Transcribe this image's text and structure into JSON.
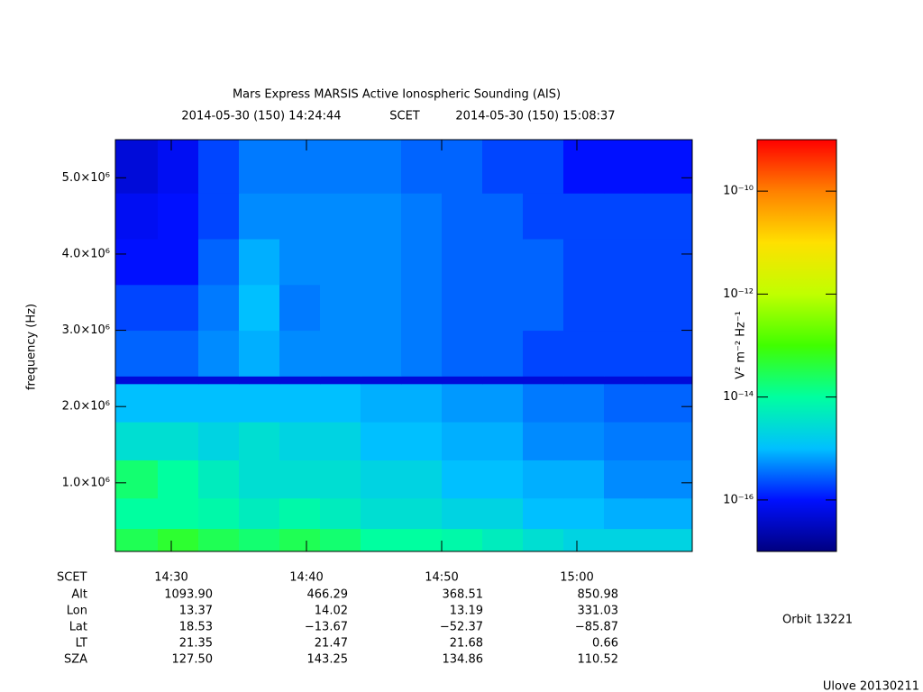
{
  "chart_data": {
    "type": "spectrogram",
    "title": "Mars Express MARSIS Active Ionospheric Sounding (AIS)",
    "subtitle": [
      "2014-05-30 (150) 14:24:44",
      "SCET",
      "2014-05-30 (150) 15:08:37"
    ],
    "ylabel": "frequency (Hz)",
    "xlabel": "SCET",
    "xlim": [
      "14:25:52",
      "15:08:32"
    ],
    "xticks": [
      "14:30",
      "14:40",
      "14:50",
      "15:00"
    ],
    "ylim": [
      100000,
      5500000
    ],
    "yticks": [
      {
        "value": 1000000,
        "label": "1.0×10⁶"
      },
      {
        "value": 2000000,
        "label": "2.0×10⁶"
      },
      {
        "value": 3000000,
        "label": "3.0×10⁶"
      },
      {
        "value": 4000000,
        "label": "4.0×10⁶"
      },
      {
        "value": 5000000,
        "label": "5.0×10⁶"
      }
    ],
    "time_bins": [
      "14:25:52",
      "14:29:00",
      "14:32:00",
      "14:35:00",
      "14:38:00",
      "14:41:00",
      "14:44:00",
      "14:47:00",
      "14:50:00",
      "14:53:00",
      "14:56:00",
      "14:59:00",
      "15:02:00",
      "15:05:00",
      "15:08:32"
    ],
    "freq_bins": [
      100000,
      400000,
      800000,
      1300000,
      1800000,
      2300000,
      2400000,
      3000000,
      3600000,
      4200000,
      4800000,
      5500000
    ],
    "values": [
      [
        3e-14,
        5e-14,
        3e-14,
        2e-14,
        3e-14,
        2e-14,
        1e-14,
        1e-14,
        8e-15,
        5e-15,
        3e-15,
        2e-15,
        2e-15,
        2e-15
      ],
      [
        1e-14,
        1e-14,
        8e-15,
        5e-15,
        8e-15,
        5e-15,
        3e-15,
        3e-15,
        2e-15,
        2e-15,
        1e-15,
        1e-15,
        8e-16,
        8e-16
      ],
      [
        2e-14,
        1e-14,
        5e-15,
        3e-15,
        3e-15,
        3e-15,
        2e-15,
        2e-15,
        1e-15,
        1e-15,
        8e-16,
        8e-16,
        5e-16,
        5e-16
      ],
      [
        3e-15,
        3e-15,
        2e-15,
        3e-15,
        2e-15,
        2e-15,
        1e-15,
        1e-15,
        8e-16,
        8e-16,
        5e-16,
        5e-16,
        4e-16,
        4e-16
      ],
      [
        1e-15,
        1e-15,
        1e-15,
        1e-15,
        1e-15,
        1e-15,
        8e-16,
        8e-16,
        6e-16,
        6e-16,
        4e-16,
        4e-16,
        3e-16,
        3e-16
      ],
      [
        5e-17,
        5e-17,
        5e-17,
        5e-17,
        5e-17,
        5e-17,
        5e-17,
        5e-17,
        5e-17,
        5e-17,
        5e-17,
        5e-17,
        5e-17,
        5e-17
      ],
      [
        3e-16,
        3e-16,
        5e-16,
        8e-16,
        5e-16,
        5e-16,
        5e-16,
        4e-16,
        3e-16,
        3e-16,
        2e-16,
        2e-16,
        2e-16,
        2e-16
      ],
      [
        2e-16,
        2e-16,
        4e-16,
        1e-15,
        4e-16,
        5e-16,
        5e-16,
        4e-16,
        3e-16,
        3e-16,
        3e-16,
        2e-16,
        2e-16,
        2e-16
      ],
      [
        1e-16,
        1e-16,
        3e-16,
        8e-16,
        5e-16,
        5e-16,
        5e-16,
        4e-16,
        3e-16,
        3e-16,
        3e-16,
        2e-16,
        2e-16,
        2e-16
      ],
      [
        8e-17,
        1e-16,
        2e-16,
        5e-16,
        5e-16,
        5e-16,
        5e-16,
        4e-16,
        3e-16,
        3e-16,
        2e-16,
        2e-16,
        2e-16,
        2e-16
      ],
      [
        5e-17,
        8e-17,
        2e-16,
        4e-16,
        4e-16,
        4e-16,
        4e-16,
        3e-16,
        3e-16,
        2e-16,
        2e-16,
        1e-16,
        1e-16,
        1e-16
      ]
    ],
    "log_color_scale": true,
    "zlim": [
      1e-17,
      1e-09
    ],
    "zticks": [
      {
        "value": 1e-10,
        "label": "10⁻¹⁰"
      },
      {
        "value": 1e-12,
        "label": "10⁻¹²"
      },
      {
        "value": 1e-14,
        "label": "10⁻¹⁴"
      },
      {
        "value": 1e-16,
        "label": "10⁻¹⁶"
      }
    ],
    "zlabel": "V² m⁻² Hz⁻¹",
    "colormap": [
      "#000080",
      "#0010ff",
      "#00c0ff",
      "#00ffa0",
      "#40ff00",
      "#c0ff00",
      "#ffe000",
      "#ff8000",
      "#ff0000"
    ],
    "ephemeris": [
      {
        "label": "Alt",
        "values": [
          "1093.90",
          "466.29",
          "368.51",
          "850.98"
        ]
      },
      {
        "label": "Lon",
        "values": [
          "13.37",
          "14.02",
          "13.19",
          "331.03"
        ]
      },
      {
        "label": "Lat",
        "values": [
          "18.53",
          "−13.67",
          "−52.37",
          "−85.87"
        ]
      },
      {
        "label": "LT",
        "values": [
          "21.35",
          "21.47",
          "21.68",
          "0.66"
        ]
      },
      {
        "label": "SZA",
        "values": [
          "127.50",
          "143.25",
          "134.86",
          "110.52"
        ]
      }
    ],
    "orbit": "Orbit 13221",
    "footer": "Ulove 20130211"
  }
}
